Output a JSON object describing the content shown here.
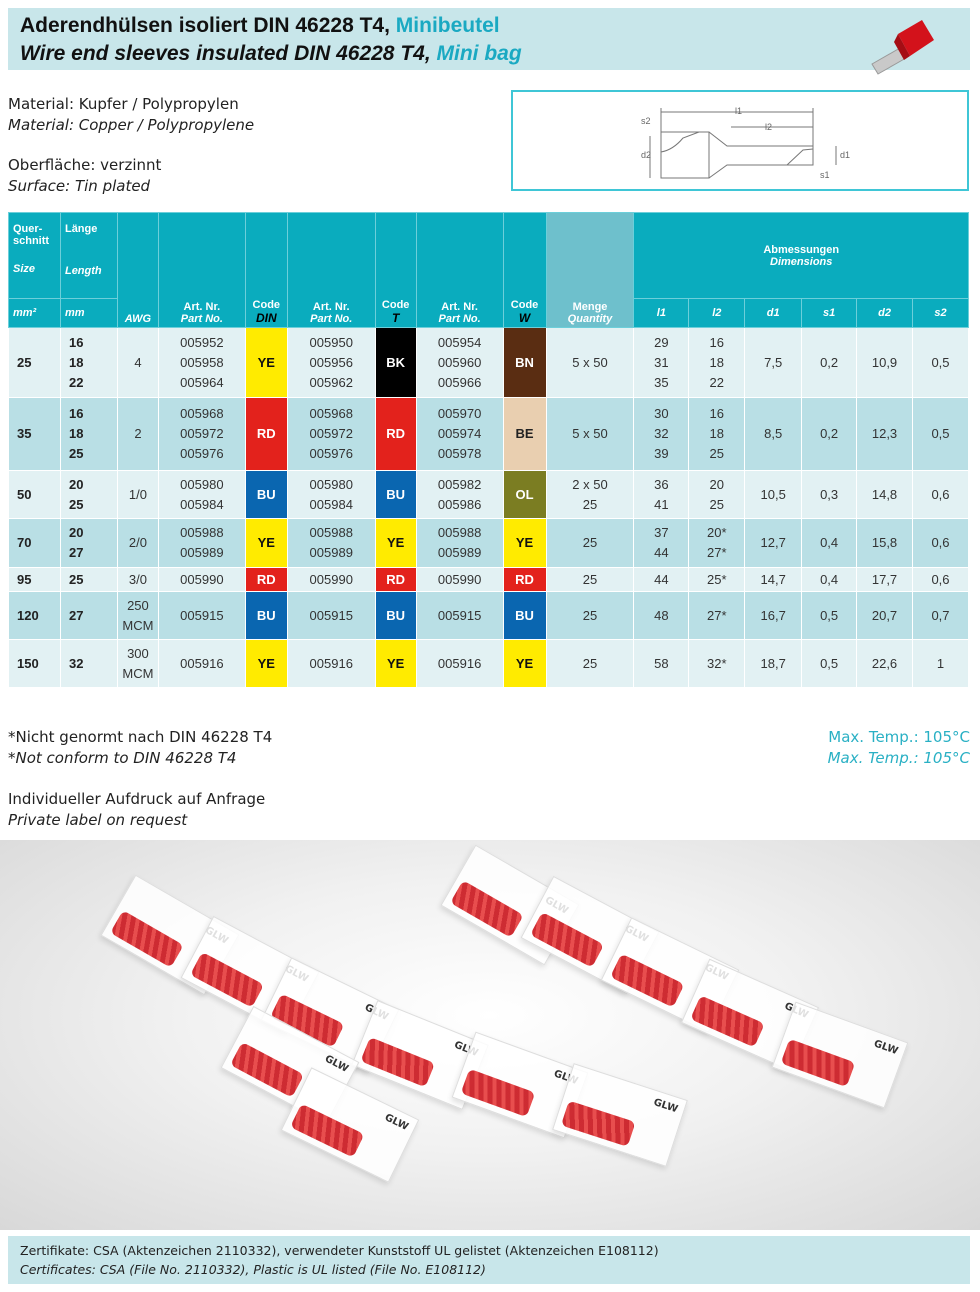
{
  "header": {
    "title_de": "Aderendhülsen isoliert DIN 46228 T4,",
    "title_de_accent": "Minibeutel",
    "title_en": "Wire end sleeves insulated DIN 46228 T4,",
    "title_en_accent": "Mini bag"
  },
  "material": {
    "de": "Material: Kupfer / Polypropylen",
    "en": "Material: Copper / Polypropylene"
  },
  "surface": {
    "de": "Oberfläche: verzinnt",
    "en": "Surface: Tin plated"
  },
  "diagram": {
    "labels": [
      "l1",
      "l2",
      "s2",
      "d2",
      "d1",
      "s1"
    ]
  },
  "table": {
    "headers": {
      "size_de": "Quer-schnitt",
      "size_en": "Size",
      "length_de": "Länge",
      "length_en": "Length",
      "size_unit": "mm²",
      "length_unit": "mm",
      "awg": "AWG",
      "art_de": "Art. Nr.",
      "art_en": "Part No.",
      "code": "Code",
      "code_din": "DIN",
      "code_t": "T",
      "code_w": "W",
      "qty_de": "Menge",
      "qty_en": "Quantity",
      "dims_de": "Abmessungen",
      "dims_en": "Dimensions",
      "l1": "l1",
      "l2": "l2",
      "d1": "d1",
      "s1": "s1",
      "d2": "d2",
      "s2": "s2"
    },
    "colors": {
      "YE": "#ffeb00",
      "BK": "#000000",
      "BN": "#5a2d12",
      "RD": "#e3221c",
      "BE": "#e9cfb0",
      "BU": "#0a66b0",
      "OL": "#7b7d22"
    },
    "rows": [
      {
        "size": "25",
        "length": [
          "16",
          "18",
          "22"
        ],
        "awg": "4",
        "din": [
          "005952",
          "005958",
          "005964"
        ],
        "din_code": "YE",
        "t": [
          "005950",
          "005956",
          "005962"
        ],
        "t_code": "BK",
        "w": [
          "005954",
          "005960",
          "005966"
        ],
        "w_code": "BN",
        "qty": [
          "5 x 50"
        ],
        "l1": [
          "29",
          "31",
          "35"
        ],
        "l2": [
          "16",
          "18",
          "22"
        ],
        "d1": "7,5",
        "s1": "0,2",
        "d2": "10,9",
        "s2": "0,5"
      },
      {
        "size": "35",
        "length": [
          "16",
          "18",
          "25"
        ],
        "awg": "2",
        "din": [
          "005968",
          "005972",
          "005976"
        ],
        "din_code": "RD",
        "t": [
          "005968",
          "005972",
          "005976"
        ],
        "t_code": "RD",
        "w": [
          "005970",
          "005974",
          "005978"
        ],
        "w_code": "BE",
        "qty": [
          "5 x 50"
        ],
        "l1": [
          "30",
          "32",
          "39"
        ],
        "l2": [
          "16",
          "18",
          "25"
        ],
        "d1": "8,5",
        "s1": "0,2",
        "d2": "12,3",
        "s2": "0,5"
      },
      {
        "size": "50",
        "length": [
          "20",
          "25"
        ],
        "awg": "1/0",
        "din": [
          "005980",
          "005984"
        ],
        "din_code": "BU",
        "t": [
          "005980",
          "005984"
        ],
        "t_code": "BU",
        "w": [
          "005982",
          "005986"
        ],
        "w_code": "OL",
        "qty": [
          "2 x 50",
          "25"
        ],
        "l1": [
          "36",
          "41"
        ],
        "l2": [
          "20",
          "25"
        ],
        "d1": "10,5",
        "s1": "0,3",
        "d2": "14,8",
        "s2": "0,6"
      },
      {
        "size": "70",
        "length": [
          "20",
          "27"
        ],
        "awg": "2/0",
        "din": [
          "005988",
          "005989"
        ],
        "din_code": "YE",
        "t": [
          "005988",
          "005989"
        ],
        "t_code": "YE",
        "w": [
          "005988",
          "005989"
        ],
        "w_code": "YE",
        "qty": [
          "25"
        ],
        "l1": [
          "37",
          "44"
        ],
        "l2": [
          "20*",
          "27*"
        ],
        "d1": "12,7",
        "s1": "0,4",
        "d2": "15,8",
        "s2": "0,6"
      },
      {
        "size": "95",
        "length": [
          "25"
        ],
        "awg": "3/0",
        "din": [
          "005990"
        ],
        "din_code": "RD",
        "t": [
          "005990"
        ],
        "t_code": "RD",
        "w": [
          "005990"
        ],
        "w_code": "RD",
        "qty": [
          "25"
        ],
        "l1": [
          "44"
        ],
        "l2": [
          "25*"
        ],
        "d1": "14,7",
        "s1": "0,4",
        "d2": "17,7",
        "s2": "0,6"
      },
      {
        "size": "120",
        "length": [
          "27"
        ],
        "awg": "250 MCM",
        "din": [
          "005915"
        ],
        "din_code": "BU",
        "t": [
          "005915"
        ],
        "t_code": "BU",
        "w": [
          "005915"
        ],
        "w_code": "BU",
        "qty": [
          "25"
        ],
        "l1": [
          "48"
        ],
        "l2": [
          "27*"
        ],
        "d1": "16,7",
        "s1": "0,5",
        "d2": "20,7",
        "s2": "0,7"
      },
      {
        "size": "150",
        "length": [
          "32"
        ],
        "awg": "300 MCM",
        "din": [
          "005916"
        ],
        "din_code": "YE",
        "t": [
          "005916"
        ],
        "t_code": "YE",
        "w": [
          "005916"
        ],
        "w_code": "YE",
        "qty": [
          "25"
        ],
        "l1": [
          "58"
        ],
        "l2": [
          "32*"
        ],
        "d1": "18,7",
        "s1": "0,5",
        "d2": "22,6",
        "s2": "1"
      }
    ]
  },
  "notes": {
    "norm_de": "*Nicht genormt nach DIN 46228 T4",
    "norm_en": "*Not conform to DIN 46228 T4",
    "label_de": "Individueller Aufdruck auf Anfrage",
    "label_en": "Private label on request"
  },
  "temp": {
    "de": "Max. Temp.: 105°C",
    "en": "Max. Temp.: 105°C"
  },
  "photo": {
    "brand": "GLW"
  },
  "footer": {
    "de": "Zertifikate: CSA (Aktenzeichen 2110332), verwendeter Kunststoff UL gelistet (Aktenzeichen E108112)",
    "en": "Certificates: CSA (File No. 2110332), Plastic is UL listed (File No. E108112)"
  }
}
